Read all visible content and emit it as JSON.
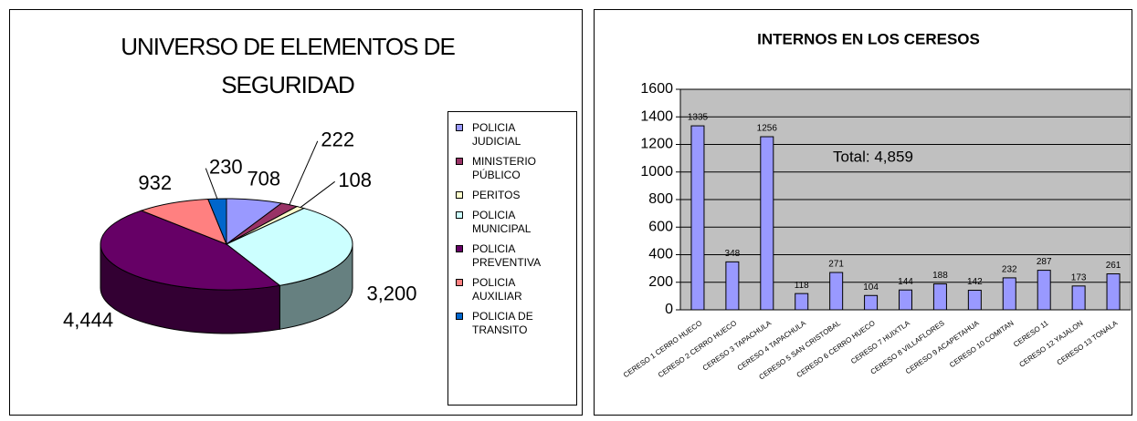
{
  "chart_data": [
    {
      "type": "pie",
      "title": "UNIVERSO DE ELEMENTOS DE SEGURIDAD",
      "categories": [
        "POLICIA JUDICIAL",
        "MINISTERIO PÚBLICO",
        "PERITOS",
        "POLICIA MUNICIPAL",
        "POLICIA PREVENTIVA",
        "POLICIA AUXILIAR",
        "POLICIA DE TRANSITO"
      ],
      "values": [
        708,
        222,
        108,
        3200,
        4444,
        932,
        230
      ],
      "value_labels": [
        "708",
        "222",
        "108",
        "3,200",
        "4,444",
        "932",
        "230"
      ],
      "colors": [
        "#9999ff",
        "#993366",
        "#ffffcc",
        "#ccffff",
        "#660066",
        "#ff8080",
        "#0066cc"
      ],
      "legend": "right"
    },
    {
      "type": "bar",
      "title": "INTERNOS EN LOS CERESOS",
      "categories": [
        "CERESO 1 CERRO HUECO",
        "CERESO 2 CERRO HUECO",
        "CERESO 3 TAPACHULA",
        "CERESO 4 TAPACHULA",
        "CERESO 5 SAN CRISTOBAL",
        "CERESO 6 CERRO HUECO",
        "CERESO 7 HUIXTLA",
        "CERESO 8 VILLAFLORES",
        "CERESO 9 ACAPETAHUA",
        "CERESO 10 COMITAN",
        "CERESO 11",
        "CERESO 12 YAJALON",
        "CERESO 13 TONALA"
      ],
      "values": [
        1335,
        348,
        1256,
        118,
        271,
        104,
        144,
        188,
        142,
        232,
        287,
        173,
        261
      ],
      "color": "#9999ff",
      "annotation": "Total: 4,859",
      "ylim": [
        0,
        1600
      ],
      "yticks": [
        0,
        200,
        400,
        600,
        800,
        1000,
        1200,
        1400,
        1600
      ],
      "grid": true
    }
  ]
}
